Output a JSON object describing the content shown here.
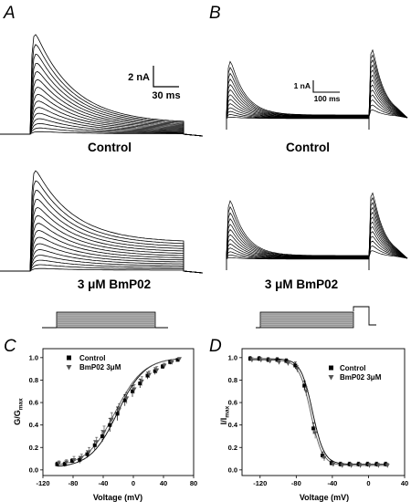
{
  "figure": {
    "panels": {
      "A": {
        "letter": "A",
        "control_label": "Control",
        "drug_label": "3 μM BmP02",
        "scale_y": "2 nA",
        "scale_x": "30 ms"
      },
      "B": {
        "letter": "B",
        "control_label": "Control",
        "drug_label": "3 μM BmP02",
        "scale_y": "1 nA",
        "scale_x": "100 ms"
      },
      "C": {
        "letter": "C"
      },
      "D": {
        "letter": "D"
      }
    },
    "colors": {
      "control": "#000000",
      "drug": "#555555",
      "protocol_fill": "#b0b0b0"
    }
  },
  "chart_data": [
    {
      "id": "C",
      "type": "scatter",
      "xlabel": "Voltage (mV)",
      "ylabel": "G/G",
      "ylabel_sub": "max",
      "xlim": [
        -120,
        80
      ],
      "ylim": [
        -0.05,
        1.08
      ],
      "xticks": [
        -120,
        -80,
        -40,
        0,
        40,
        80
      ],
      "yticks": [
        0.0,
        0.2,
        0.4,
        0.6,
        0.8,
        1.0
      ],
      "xtick_labels": [
        "-120",
        "-80",
        "-40",
        "0",
        "40",
        "80"
      ],
      "ytick_labels": [
        "0.0",
        "0.2",
        "0.4",
        "0.6",
        "0.8",
        "1.0"
      ],
      "legend_position": "top-left",
      "fit": {
        "kind": "boltzmann_activation"
      },
      "series": [
        {
          "name": "Control",
          "marker": "square",
          "x": [
            -100,
            -90,
            -80,
            -70,
            -60,
            -50,
            -40,
            -30,
            -20,
            -10,
            0,
            10,
            20,
            30,
            40,
            50,
            60
          ],
          "y": [
            0.05,
            0.05,
            0.08,
            0.09,
            0.14,
            0.22,
            0.3,
            0.4,
            0.5,
            0.62,
            0.7,
            0.77,
            0.84,
            0.88,
            0.92,
            0.96,
            0.98
          ],
          "err": [
            0.02,
            0.02,
            0.02,
            0.03,
            0.03,
            0.04,
            0.05,
            0.06,
            0.06,
            0.05,
            0.05,
            0.04,
            0.03,
            0.03,
            0.02,
            0.02,
            0.01
          ]
        },
        {
          "name": "BmP02 3μM",
          "marker": "triangle-down",
          "x": [
            -100,
            -90,
            -80,
            -70,
            -60,
            -50,
            -40,
            -30,
            -20,
            -10,
            0,
            10,
            20,
            30,
            40,
            50,
            60
          ],
          "y": [
            0.06,
            0.07,
            0.09,
            0.11,
            0.16,
            0.25,
            0.34,
            0.45,
            0.54,
            0.64,
            0.72,
            0.79,
            0.85,
            0.89,
            0.93,
            0.96,
            0.99
          ],
          "err": [
            0.02,
            0.02,
            0.03,
            0.03,
            0.04,
            0.04,
            0.05,
            0.06,
            0.05,
            0.05,
            0.04,
            0.04,
            0.03,
            0.03,
            0.02,
            0.02,
            0.01
          ]
        }
      ]
    },
    {
      "id": "D",
      "type": "scatter",
      "xlabel": "Voltage (mV)",
      "ylabel": "I/I",
      "ylabel_sub": "max",
      "xlim": [
        -140,
        40
      ],
      "ylim": [
        -0.05,
        1.08
      ],
      "xticks": [
        -120,
        -80,
        -40,
        0,
        40
      ],
      "yticks": [
        0.0,
        0.2,
        0.4,
        0.6,
        0.8,
        1.0
      ],
      "xtick_labels": [
        "-120",
        "-80",
        "-40",
        "0",
        "40"
      ],
      "ytick_labels": [
        "0.0",
        "0.2",
        "0.4",
        "0.6",
        "0.8",
        "1.0"
      ],
      "legend_position": "top-right",
      "fit": {
        "kind": "boltzmann_inactivation"
      },
      "series": [
        {
          "name": "Control",
          "marker": "square",
          "x": [
            -130,
            -120,
            -110,
            -100,
            -90,
            -80,
            -70,
            -60,
            -50,
            -40,
            -30,
            -20,
            -10,
            0,
            10,
            20
          ],
          "y": [
            0.99,
            0.99,
            0.98,
            0.98,
            0.97,
            0.93,
            0.75,
            0.37,
            0.13,
            0.06,
            0.05,
            0.05,
            0.05,
            0.05,
            0.05,
            0.05
          ],
          "err": [
            0.02,
            0.02,
            0.02,
            0.02,
            0.02,
            0.03,
            0.04,
            0.05,
            0.03,
            0.02,
            0.02,
            0.02,
            0.02,
            0.02,
            0.02,
            0.02
          ]
        },
        {
          "name": "BmP02 3μM",
          "marker": "triangle-down",
          "x": [
            -130,
            -120,
            -110,
            -100,
            -90,
            -80,
            -70,
            -60,
            -50,
            -40,
            -30,
            -20,
            -10,
            0,
            10,
            20
          ],
          "y": [
            0.98,
            0.98,
            0.97,
            0.96,
            0.95,
            0.9,
            0.7,
            0.33,
            0.11,
            0.05,
            0.04,
            0.04,
            0.04,
            0.04,
            0.04,
            0.04
          ],
          "err": [
            0.02,
            0.02,
            0.02,
            0.02,
            0.02,
            0.03,
            0.04,
            0.05,
            0.03,
            0.02,
            0.02,
            0.02,
            0.02,
            0.02,
            0.02,
            0.02
          ]
        }
      ]
    }
  ]
}
